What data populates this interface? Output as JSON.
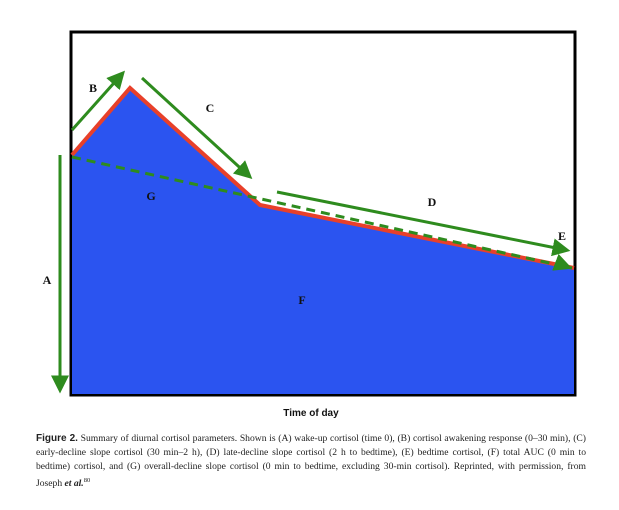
{
  "labels": {
    "A": "A",
    "B": "B",
    "C": "C",
    "D": "D",
    "E": "E",
    "F": "F",
    "G": "G"
  },
  "x_axis_label": "Time of day",
  "caption": {
    "label": "Figure 2.",
    "text": "Summary of diurnal cortisol parameters. Shown is (A) wake-up cortisol (time 0), (B) cortisol awakening response (0–30 min), (C) early-decline slope cortisol (30 min–2 h), (D) late-decline slope cortisol (2 h to bedtime), (E) bedtime cortisol, (F) total AUC (0 min to bedtime) cortisol, and (G) overall-decline slope cortisol (0 min to bedtime, excluding 30-min cortisol). Reprinted, with permission, from Joseph ",
    "emph": "et al.",
    "ref": "80"
  }
}
